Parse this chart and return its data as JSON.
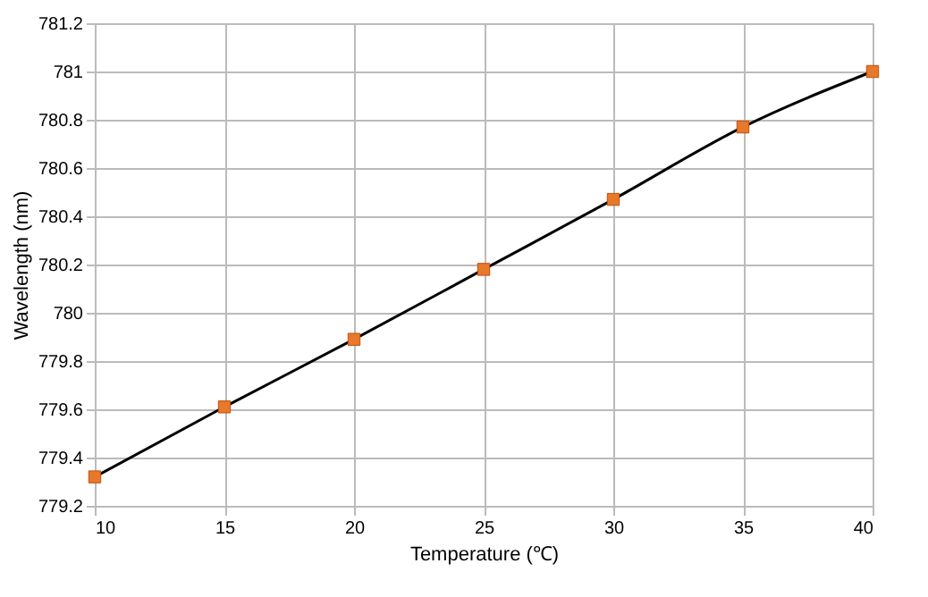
{
  "chart_data": {
    "type": "line",
    "xlabel": "Temperature (℃)",
    "ylabel": "Wavelength (nm)",
    "x": [
      10,
      15,
      20,
      25,
      30,
      35,
      40
    ],
    "series": [
      {
        "color": "#000000",
        "marker": "none",
        "values": [
          779.32,
          779.61,
          779.89,
          780.18,
          780.47,
          780.77,
          781.0
        ]
      },
      {
        "type": "scatter",
        "color": "#e8782a",
        "marker": "square",
        "values": [
          779.32,
          779.61,
          779.89,
          780.18,
          780.47,
          780.77,
          781.0
        ]
      }
    ],
    "xlim": [
      10,
      40
    ],
    "xticks": [
      10,
      15,
      20,
      25,
      30,
      35,
      40
    ],
    "ylim": [
      779.2,
      781.2
    ],
    "yticks": [
      779.2,
      779.4,
      779.6,
      779.8,
      780,
      780.2,
      780.4,
      780.6,
      780.8,
      781,
      781.2
    ],
    "grid": true,
    "line_style": "solid"
  }
}
